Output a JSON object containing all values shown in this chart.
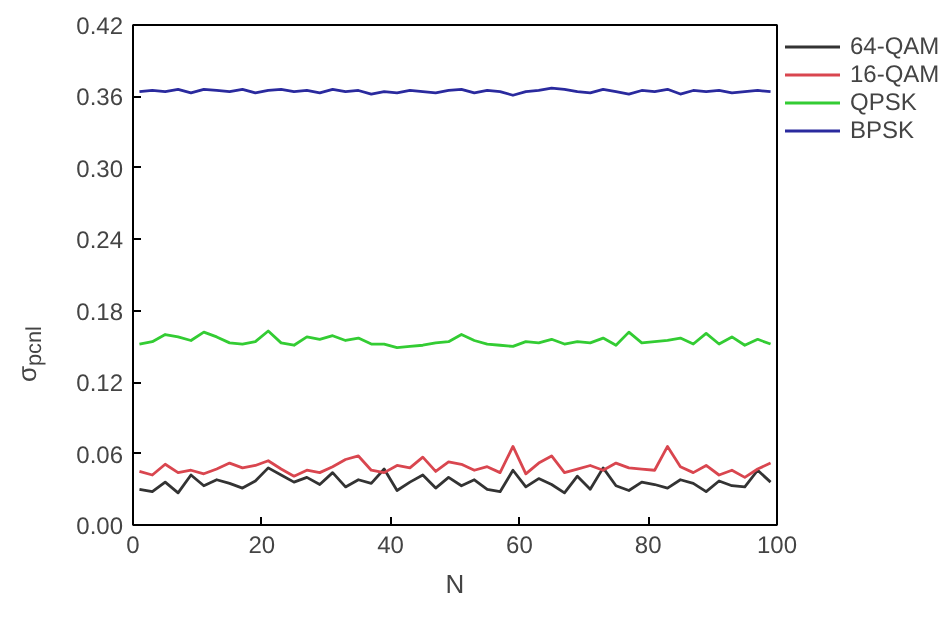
{
  "chart_data": {
    "type": "line",
    "xlabel": "N",
    "ylabel": "σ$_{pcnl}$",
    "x": [
      1,
      3,
      5,
      7,
      9,
      11,
      13,
      15,
      17,
      19,
      21,
      23,
      25,
      27,
      29,
      31,
      33,
      35,
      37,
      39,
      41,
      43,
      45,
      47,
      49,
      51,
      53,
      55,
      57,
      59,
      61,
      63,
      65,
      67,
      69,
      71,
      73,
      75,
      77,
      79,
      81,
      83,
      85,
      87,
      89,
      91,
      93,
      95,
      97,
      99
    ],
    "series": [
      {
        "name": "64-QAM",
        "color": "#333333",
        "values": [
          0.03,
          0.028,
          0.036,
          0.027,
          0.042,
          0.033,
          0.038,
          0.035,
          0.031,
          0.037,
          0.048,
          0.042,
          0.036,
          0.04,
          0.034,
          0.044,
          0.032,
          0.038,
          0.035,
          0.047,
          0.029,
          0.036,
          0.042,
          0.031,
          0.04,
          0.033,
          0.038,
          0.03,
          0.028,
          0.046,
          0.032,
          0.039,
          0.034,
          0.027,
          0.041,
          0.03,
          0.048,
          0.033,
          0.029,
          0.036,
          0.034,
          0.031,
          0.038,
          0.035,
          0.028,
          0.037,
          0.033,
          0.032,
          0.046,
          0.036
        ]
      },
      {
        "name": "16-QAM",
        "color": "#d9464f",
        "values": [
          0.045,
          0.042,
          0.051,
          0.044,
          0.046,
          0.043,
          0.047,
          0.052,
          0.048,
          0.05,
          0.054,
          0.047,
          0.041,
          0.046,
          0.044,
          0.049,
          0.055,
          0.058,
          0.046,
          0.044,
          0.05,
          0.048,
          0.057,
          0.045,
          0.053,
          0.051,
          0.046,
          0.049,
          0.044,
          0.066,
          0.043,
          0.052,
          0.058,
          0.044,
          0.047,
          0.05,
          0.046,
          0.052,
          0.048,
          0.047,
          0.046,
          0.066,
          0.049,
          0.044,
          0.05,
          0.042,
          0.046,
          0.04,
          0.047,
          0.052
        ]
      },
      {
        "name": "QPSK",
        "color": "#33cc33",
        "values": [
          0.152,
          0.154,
          0.16,
          0.158,
          0.155,
          0.162,
          0.158,
          0.153,
          0.152,
          0.154,
          0.163,
          0.153,
          0.151,
          0.158,
          0.156,
          0.159,
          0.155,
          0.157,
          0.152,
          0.152,
          0.149,
          0.15,
          0.151,
          0.153,
          0.154,
          0.16,
          0.155,
          0.152,
          0.151,
          0.15,
          0.154,
          0.153,
          0.156,
          0.152,
          0.154,
          0.153,
          0.157,
          0.151,
          0.162,
          0.153,
          0.154,
          0.155,
          0.157,
          0.152,
          0.161,
          0.152,
          0.158,
          0.151,
          0.156,
          0.152
        ]
      },
      {
        "name": "BPSK",
        "color": "#2a2a9e",
        "values": [
          0.364,
          0.365,
          0.364,
          0.366,
          0.363,
          0.366,
          0.365,
          0.364,
          0.366,
          0.363,
          0.365,
          0.366,
          0.364,
          0.365,
          0.363,
          0.366,
          0.364,
          0.365,
          0.362,
          0.364,
          0.363,
          0.365,
          0.364,
          0.363,
          0.365,
          0.366,
          0.363,
          0.365,
          0.364,
          0.361,
          0.364,
          0.365,
          0.367,
          0.366,
          0.364,
          0.363,
          0.366,
          0.364,
          0.362,
          0.365,
          0.364,
          0.366,
          0.362,
          0.365,
          0.364,
          0.365,
          0.363,
          0.364,
          0.365,
          0.364
        ]
      }
    ],
    "xlim": [
      0,
      100
    ],
    "xticks": [
      0,
      20,
      40,
      60,
      80,
      100
    ],
    "ylim": [
      0,
      0.42
    ],
    "yticks": [
      {
        "value": 0,
        "label": "0.00"
      },
      {
        "value": 0.06,
        "label": "0.06"
      },
      {
        "value": 0.12,
        "label": "0.12"
      },
      {
        "value": 0.18,
        "label": "0.18"
      },
      {
        "value": 0.24,
        "label": "0.24"
      },
      {
        "value": 0.3,
        "label": "0.30"
      },
      {
        "value": 0.36,
        "label": "0.36"
      },
      {
        "value": 0.42,
        "label": "0.42"
      }
    ],
    "grid": false,
    "legend": "right",
    "marker": "none",
    "line_style": "solid"
  }
}
